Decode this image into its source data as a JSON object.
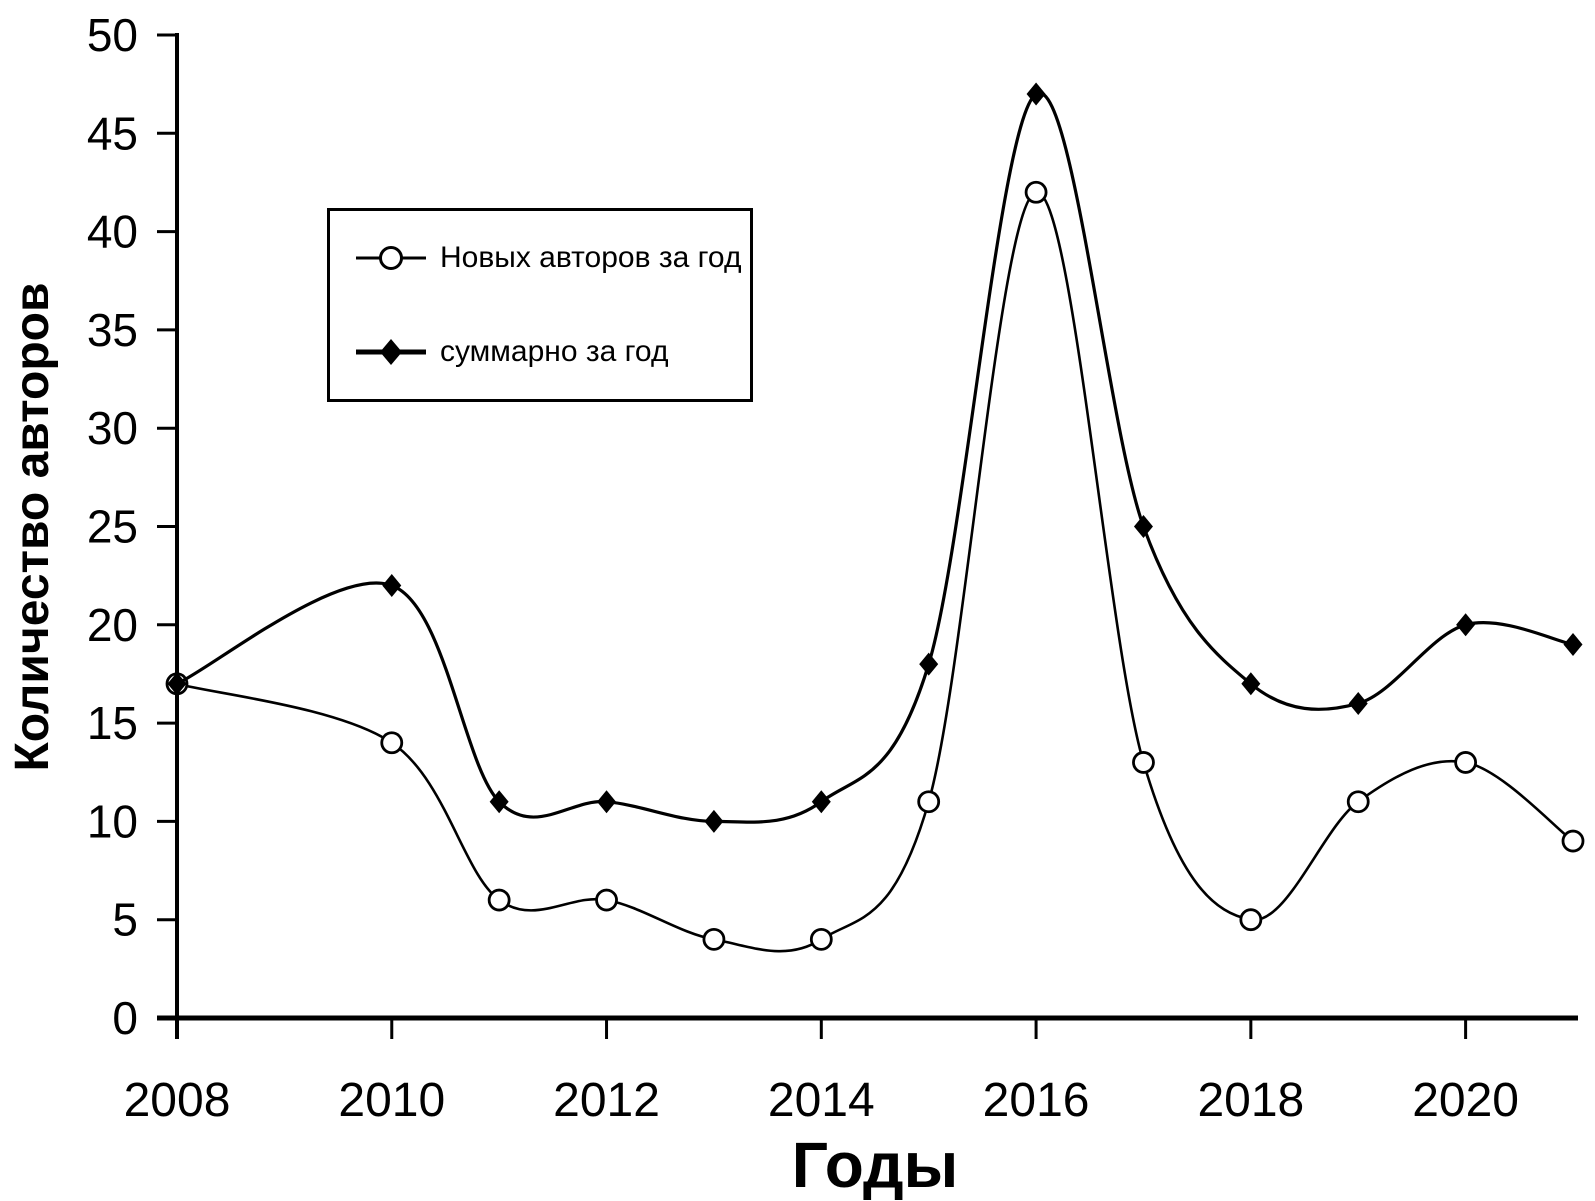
{
  "chart_data": {
    "type": "line",
    "title": "",
    "xlabel": "Годы",
    "ylabel": "Количество авторов",
    "x": [
      2008,
      2010,
      2011,
      2012,
      2013,
      2014,
      2015,
      2016,
      2017,
      2018,
      2019,
      2020,
      2021
    ],
    "series": [
      {
        "name": "Новых авторов за год",
        "marker": "open-circle",
        "values": [
          17,
          14,
          6,
          6,
          4,
          4,
          11,
          42,
          13,
          5,
          11,
          13,
          9
        ]
      },
      {
        "name": "суммарно за год",
        "marker": "filled-diamond",
        "values": [
          17,
          22,
          11,
          11,
          10,
          11,
          18,
          47,
          25,
          17,
          16,
          20,
          19
        ]
      }
    ],
    "xlim": [
      2008,
      2021
    ],
    "ylim": [
      0,
      50
    ],
    "y_ticks": [
      0,
      5,
      10,
      15,
      20,
      25,
      30,
      35,
      40,
      45,
      50
    ],
    "x_ticks": [
      2008,
      2010,
      2012,
      2014,
      2016,
      2018,
      2020
    ],
    "grid": false,
    "smooth": true,
    "legend_position": "upper-left-inside",
    "line_color": "#000000",
    "background_color": "#ffffff"
  }
}
